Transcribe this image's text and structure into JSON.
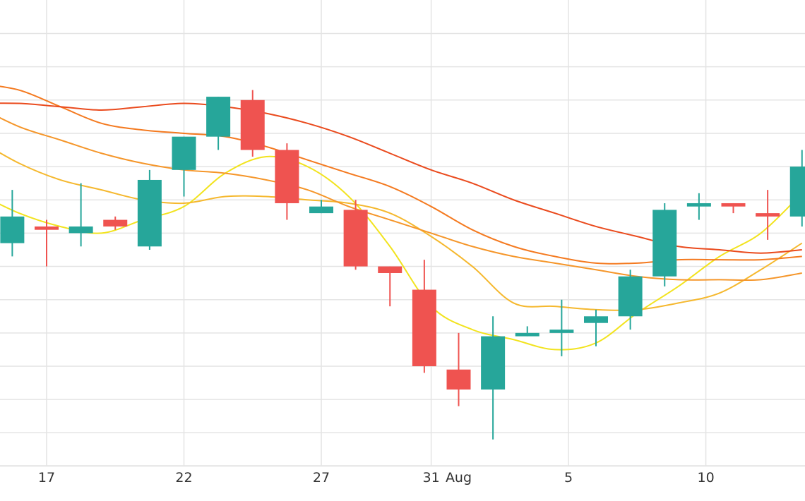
{
  "chart_data": {
    "type": "candlestick",
    "title": "",
    "xlabel": "",
    "ylabel": "",
    "grid": true,
    "x_ticks": [
      {
        "day": 17,
        "label": "17"
      },
      {
        "day": 22,
        "label": "22"
      },
      {
        "day": 27,
        "label": "27"
      },
      {
        "day": 31,
        "label": "31"
      },
      {
        "day": 32,
        "label": "Aug"
      },
      {
        "day": 36,
        "label": "5"
      },
      {
        "day": 41,
        "label": "10"
      }
    ],
    "y_gridlines": [
      100,
      95,
      90,
      85,
      80,
      75,
      70,
      65,
      60,
      55,
      50,
      45,
      40,
      35
    ],
    "candles": [
      {
        "day": 15.75,
        "open": 68.5,
        "close": 72.5,
        "high": 76.5,
        "low": 66.5
      },
      {
        "day": 17.0,
        "open": 71.0,
        "close": 70.5,
        "high": 72.0,
        "low": 65.0
      },
      {
        "day": 18.25,
        "open": 70.0,
        "close": 71.0,
        "high": 77.5,
        "low": 68.0
      },
      {
        "day": 19.5,
        "open": 72.0,
        "close": 71.0,
        "high": 72.5,
        "low": 70.5
      },
      {
        "day": 20.75,
        "open": 68.0,
        "close": 78.0,
        "high": 79.5,
        "low": 67.5
      },
      {
        "day": 22.0,
        "open": 79.5,
        "close": 84.5,
        "high": 84.5,
        "low": 75.5
      },
      {
        "day": 23.25,
        "open": 84.5,
        "close": 90.5,
        "high": 90.5,
        "low": 82.5
      },
      {
        "day": 24.5,
        "open": 90.0,
        "close": 82.5,
        "high": 91.5,
        "low": 81.5
      },
      {
        "day": 25.75,
        "open": 82.5,
        "close": 74.5,
        "high": 83.5,
        "low": 72.0
      },
      {
        "day": 27.0,
        "open": 73.0,
        "close": 74.0,
        "high": 75.0,
        "low": 73.0
      },
      {
        "day": 28.25,
        "open": 73.5,
        "close": 65.0,
        "high": 75.0,
        "low": 64.5
      },
      {
        "day": 29.5,
        "open": 65.0,
        "close": 64.0,
        "high": 65.0,
        "low": 59.0
      },
      {
        "day": 30.75,
        "open": 61.5,
        "close": 50.0,
        "high": 66.0,
        "low": 49.0
      },
      {
        "day": 32.0,
        "open": 49.5,
        "close": 46.5,
        "high": 55.0,
        "low": 44.0
      },
      {
        "day": 33.25,
        "open": 46.5,
        "close": 54.5,
        "high": 57.5,
        "low": 39.0
      },
      {
        "day": 34.5,
        "open": 54.5,
        "close": 55.0,
        "high": 56.0,
        "low": 54.5
      },
      {
        "day": 35.75,
        "open": 55.0,
        "close": 55.5,
        "high": 60.0,
        "low": 51.5
      },
      {
        "day": 37.0,
        "open": 56.5,
        "close": 57.5,
        "high": 58.5,
        "low": 53.0
      },
      {
        "day": 38.25,
        "open": 57.5,
        "close": 63.5,
        "high": 64.5,
        "low": 55.5
      },
      {
        "day": 39.5,
        "open": 63.5,
        "close": 73.5,
        "high": 74.5,
        "low": 62.0
      },
      {
        "day": 40.75,
        "open": 74.0,
        "close": 74.5,
        "high": 76.0,
        "low": 72.0
      },
      {
        "day": 42.0,
        "open": 74.5,
        "close": 74.0,
        "high": 74.5,
        "low": 73.0
      },
      {
        "day": 43.25,
        "open": 73.0,
        "close": 72.5,
        "high": 76.5,
        "low": 69.0
      },
      {
        "day": 44.5,
        "open": 72.5,
        "close": 80.0,
        "high": 82.5,
        "low": 71.0
      }
    ],
    "series": [
      {
        "color": "#f2e31e",
        "values": [
          [
            14.5,
            76
          ],
          [
            16,
            73
          ],
          [
            17.5,
            71
          ],
          [
            19,
            70
          ],
          [
            20.5,
            72
          ],
          [
            22,
            74
          ],
          [
            23.5,
            79
          ],
          [
            25,
            81.5
          ],
          [
            26.5,
            80
          ],
          [
            28,
            75.5
          ],
          [
            29.5,
            68
          ],
          [
            31,
            59
          ],
          [
            32.5,
            55.5
          ],
          [
            34,
            54
          ],
          [
            35.5,
            52.5
          ],
          [
            37,
            53.5
          ],
          [
            38.5,
            58
          ],
          [
            40,
            62
          ],
          [
            41.5,
            66.5
          ],
          [
            43,
            70
          ],
          [
            44.5,
            76
          ]
        ]
      },
      {
        "color": "#f5b82e",
        "values": [
          [
            14.5,
            84
          ],
          [
            16,
            80.5
          ],
          [
            17.5,
            78
          ],
          [
            19,
            76.5
          ],
          [
            20.5,
            75
          ],
          [
            22,
            74.5
          ],
          [
            23.5,
            75.5
          ],
          [
            25,
            75.5
          ],
          [
            26.5,
            75
          ],
          [
            28,
            74.5
          ],
          [
            29.5,
            73
          ],
          [
            31,
            69.5
          ],
          [
            32.5,
            65
          ],
          [
            34,
            59.5
          ],
          [
            35.5,
            59
          ],
          [
            37,
            58.5
          ],
          [
            38.5,
            58.5
          ],
          [
            40,
            59.5
          ],
          [
            41.5,
            61
          ],
          [
            43,
            64.5
          ],
          [
            44.5,
            68.5
          ]
        ]
      },
      {
        "color": "#f5962a",
        "values": [
          [
            14.5,
            89
          ],
          [
            16,
            86
          ],
          [
            17.5,
            84
          ],
          [
            19,
            82
          ],
          [
            20.5,
            80.5
          ],
          [
            22,
            79.5
          ],
          [
            23.5,
            79
          ],
          [
            25,
            78
          ],
          [
            26.5,
            76.5
          ],
          [
            28,
            74
          ],
          [
            29.5,
            72
          ],
          [
            31,
            70
          ],
          [
            32.5,
            68
          ],
          [
            34,
            66.5
          ],
          [
            35.5,
            65.5
          ],
          [
            37,
            64.5
          ],
          [
            38.5,
            63.5
          ],
          [
            40,
            63
          ],
          [
            41.5,
            63
          ],
          [
            43,
            63
          ],
          [
            44.5,
            64
          ]
        ]
      },
      {
        "color": "#f47a20",
        "values": [
          [
            14.5,
            92.5
          ],
          [
            16,
            91.5
          ],
          [
            17.5,
            89
          ],
          [
            19,
            86.5
          ],
          [
            20.5,
            85.5
          ],
          [
            22,
            85
          ],
          [
            23.5,
            84.5
          ],
          [
            25,
            83
          ],
          [
            26.5,
            81
          ],
          [
            28,
            79
          ],
          [
            29.5,
            77
          ],
          [
            31,
            74
          ],
          [
            32.5,
            70.5
          ],
          [
            34,
            68
          ],
          [
            35.5,
            66.5
          ],
          [
            37,
            65.5
          ],
          [
            38.5,
            65.5
          ],
          [
            40,
            66
          ],
          [
            41.5,
            66
          ],
          [
            43,
            66
          ],
          [
            44.5,
            66.5
          ]
        ]
      },
      {
        "color": "#ea4b1e",
        "values": [
          [
            14.5,
            89.5
          ],
          [
            16,
            89.5
          ],
          [
            17.5,
            89
          ],
          [
            19,
            88.5
          ],
          [
            20.5,
            89
          ],
          [
            22,
            89.5
          ],
          [
            23.5,
            89
          ],
          [
            25,
            88
          ],
          [
            26.5,
            86.5
          ],
          [
            28,
            84.5
          ],
          [
            29.5,
            82
          ],
          [
            31,
            79.5
          ],
          [
            32.5,
            77.5
          ],
          [
            34,
            75
          ],
          [
            35.5,
            73
          ],
          [
            37,
            71
          ],
          [
            38.5,
            69.5
          ],
          [
            40,
            68
          ],
          [
            41.5,
            67.5
          ],
          [
            43,
            67
          ],
          [
            44.5,
            67.5
          ]
        ]
      }
    ],
    "up_color": "#26a69a",
    "down_color": "#ef5350",
    "grid_color": "#e4e4e4"
  }
}
